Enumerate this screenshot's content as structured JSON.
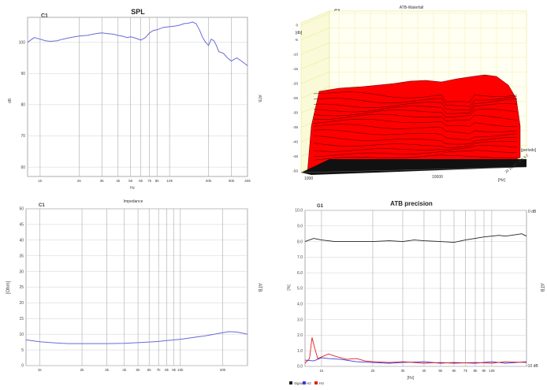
{
  "spl": {
    "tag": "C1",
    "title": "SPL",
    "left_label": "dB",
    "right_label": "ATB",
    "xlabel": "Hz",
    "chart_data": {
      "type": "line",
      "x_scale": "log",
      "xlim": [
        800,
        40000
      ],
      "ylim": [
        57,
        108
      ],
      "y_ticks": [
        60,
        70,
        80,
        90,
        100
      ],
      "x_ticks": [
        {
          "v": 1000,
          "label": "1k"
        },
        {
          "v": 2000,
          "label": "2k"
        },
        {
          "v": 3000,
          "label": "3k"
        },
        {
          "v": 4000,
          "label": "4k"
        },
        {
          "v": 5000,
          "label": "5k"
        },
        {
          "v": 6000,
          "label": "6k"
        },
        {
          "v": 7000,
          "label": "7k"
        },
        {
          "v": 8000,
          "label": "8k"
        },
        {
          "v": 10000,
          "label": "10k"
        },
        {
          "v": 20000,
          "label": "20k"
        },
        {
          "v": 30000,
          "label": "30k"
        },
        {
          "v": 40000,
          "label": "40k"
        }
      ],
      "series": [
        {
          "color": "#6a6ad8",
          "x": [
            800,
            900,
            1000,
            1100,
            1200,
            1350,
            1500,
            1700,
            2000,
            2300,
            2700,
            3000,
            3300,
            3700,
            4000,
            4300,
            4700,
            5000,
            5500,
            6000,
            6500,
            7000,
            7500,
            8000,
            9000,
            10000,
            11000,
            12000,
            13000,
            14000,
            15000,
            16000,
            17000,
            18000,
            19000,
            20000,
            21000,
            22000,
            23000,
            24000,
            26000,
            28000,
            30000,
            33000,
            36000,
            40000
          ],
          "y": [
            100,
            101.5,
            101,
            100.5,
            100.3,
            100.5,
            101,
            101.5,
            102,
            102.2,
            102.8,
            103,
            102.8,
            102.6,
            102.2,
            102,
            101.5,
            101.8,
            101.3,
            100.7,
            101.5,
            103,
            103.8,
            104,
            104.8,
            105,
            105.2,
            105.5,
            106,
            106.1,
            106.5,
            106,
            104,
            101.5,
            100,
            99,
            101,
            100.5,
            99,
            97,
            96.5,
            95,
            94,
            95,
            94,
            92.5
          ]
        }
      ]
    }
  },
  "atb3d": {
    "tag": "C1",
    "title": "ATB-Waterfall",
    "unit_label": "[db]",
    "z_label": "[periods]",
    "x_unit": "[Hz]",
    "x_ticks": [
      "1000",
      "10000"
    ],
    "periods": "20 15 10 7.5 5 3 2",
    "chart_data": {
      "type": "area",
      "zlim": [
        -50,
        0
      ],
      "z_ticks": [
        0,
        -5,
        -10,
        -15,
        -20,
        -25,
        -30,
        -35,
        -40,
        -45,
        -50
      ],
      "depth_rows": 14,
      "fill_color": "#ff0000"
    }
  },
  "impedance": {
    "tag": "C1",
    "title": "Impedance",
    "left_label": "[Ohm]",
    "right_label": "ATB",
    "chart_data": {
      "type": "line",
      "x_scale": "log",
      "xlim": [
        800,
        30000
      ],
      "ylim": [
        0,
        50
      ],
      "y_ticks": [
        0,
        5,
        10,
        15,
        20,
        25,
        30,
        35,
        40,
        45,
        50
      ],
      "x_ticks": [
        {
          "v": 1000,
          "label": "1k"
        },
        {
          "v": 2000,
          "label": "2k"
        },
        {
          "v": 3000,
          "label": "3k"
        },
        {
          "v": 4000,
          "label": "4k"
        },
        {
          "v": 5000,
          "label": "5k"
        },
        {
          "v": 6000,
          "label": "6k"
        },
        {
          "v": 7000,
          "label": "7k"
        },
        {
          "v": 8000,
          "label": "8k"
        },
        {
          "v": 9000,
          "label": "9k"
        },
        {
          "v": 10000,
          "label": "10k"
        },
        {
          "v": 20000,
          "label": "20k"
        }
      ],
      "series": [
        {
          "color": "#6a6ad8",
          "x": [
            800,
            1000,
            1300,
            1600,
            2000,
            2500,
            3000,
            4000,
            5000,
            6000,
            7000,
            8000,
            10000,
            12000,
            15000,
            18000,
            20000,
            22000,
            25000,
            28000,
            30000
          ],
          "y": [
            8.2,
            7.6,
            7.2,
            7.0,
            7.0,
            7.0,
            7.0,
            7.1,
            7.3,
            7.5,
            7.7,
            8.0,
            8.4,
            8.9,
            9.5,
            10.1,
            10.5,
            10.8,
            10.7,
            10.3,
            10.0
          ]
        }
      ]
    }
  },
  "atbprec": {
    "tag": "G1",
    "title": "ATB precision",
    "left_label": "[%]",
    "right_label": "ATB",
    "right_top": "0 dB",
    "right_bottom": "-10 dB",
    "xlabel": "[Hz]",
    "legend": [
      "Signal",
      "H2",
      "H3"
    ],
    "chart_data": {
      "type": "line",
      "x_scale": "log",
      "xlim": [
        800,
        16000
      ],
      "ylim": [
        0,
        10
      ],
      "y_ticks": [
        0.0,
        1.0,
        2.0,
        3.0,
        4.0,
        5.0,
        6.0,
        7.0,
        8.0,
        9.0,
        10.0
      ],
      "x_ticks": [
        {
          "v": 1000,
          "label": "1k"
        },
        {
          "v": 2000,
          "label": "2k"
        },
        {
          "v": 3000,
          "label": "3k"
        },
        {
          "v": 4000,
          "label": "4k"
        },
        {
          "v": 5000,
          "label": "5k"
        },
        {
          "v": 6000,
          "label": "6k"
        },
        {
          "v": 7000,
          "label": "7k"
        },
        {
          "v": 8000,
          "label": "8k"
        },
        {
          "v": 9000,
          "label": "9k"
        },
        {
          "v": 10000,
          "label": "10k"
        }
      ],
      "series": [
        {
          "name": "Signal",
          "color": "#222222",
          "x": [
            800,
            900,
            1000,
            1200,
            1500,
            2000,
            2500,
            3000,
            3500,
            4000,
            5000,
            6000,
            7000,
            8000,
            9000,
            10000,
            11000,
            12000,
            13000,
            14000,
            15000,
            16000
          ],
          "y": [
            8.0,
            8.2,
            8.1,
            8.0,
            8.0,
            8.0,
            8.05,
            8.0,
            8.1,
            8.05,
            8.0,
            7.95,
            8.1,
            8.2,
            8.3,
            8.35,
            8.4,
            8.35,
            8.4,
            8.45,
            8.5,
            8.35
          ]
        },
        {
          "name": "H2",
          "color": "#3a3ae0",
          "x": [
            800,
            900,
            1000,
            1100,
            1300,
            1600,
            2000,
            2500,
            3000,
            4000,
            5000,
            6000,
            8000,
            10000,
            12000,
            14000,
            16000
          ],
          "y": [
            0.4,
            0.35,
            0.55,
            0.5,
            0.45,
            0.3,
            0.25,
            0.2,
            0.25,
            0.3,
            0.2,
            0.25,
            0.2,
            0.3,
            0.2,
            0.25,
            0.3
          ]
        },
        {
          "name": "H3",
          "color": "#e02020",
          "x": [
            800,
            850,
            880,
            910,
            950,
            1000,
            1100,
            1200,
            1400,
            1600,
            1800,
            2000,
            2500,
            3000,
            4000,
            5000,
            6000,
            8000,
            10000,
            12000,
            16000
          ],
          "y": [
            0.2,
            0.5,
            1.85,
            1.2,
            0.5,
            0.6,
            0.8,
            0.65,
            0.45,
            0.5,
            0.35,
            0.3,
            0.25,
            0.3,
            0.2,
            0.25,
            0.2,
            0.25,
            0.2,
            0.3,
            0.25
          ]
        }
      ]
    }
  }
}
